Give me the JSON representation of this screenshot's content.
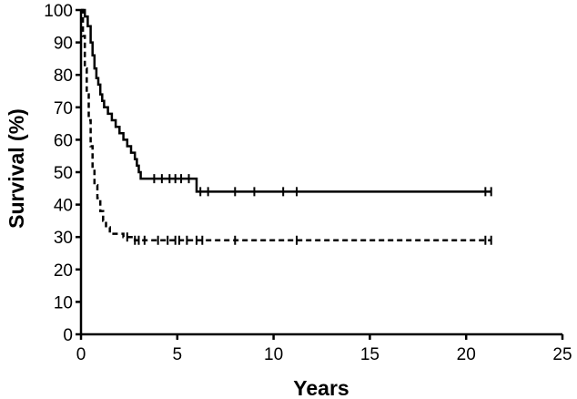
{
  "chart_data": {
    "type": "line",
    "title": "",
    "xlabel": "Years",
    "ylabel": "Survival (%)",
    "xlim": [
      0,
      25
    ],
    "ylim": [
      0,
      100
    ],
    "xticks": [
      0,
      5,
      10,
      15,
      20,
      25
    ],
    "yticks": [
      0,
      10,
      20,
      30,
      40,
      50,
      60,
      70,
      80,
      90,
      100
    ],
    "grid": false,
    "legend": "none",
    "series": [
      {
        "style": "solid",
        "color": "#000000",
        "points": [
          [
            0,
            100
          ],
          [
            0.2,
            98
          ],
          [
            0.35,
            95
          ],
          [
            0.5,
            90
          ],
          [
            0.6,
            86
          ],
          [
            0.7,
            82
          ],
          [
            0.8,
            79
          ],
          [
            0.9,
            77
          ],
          [
            1.0,
            74
          ],
          [
            1.1,
            72
          ],
          [
            1.2,
            70
          ],
          [
            1.4,
            68
          ],
          [
            1.6,
            66
          ],
          [
            1.8,
            64
          ],
          [
            2.0,
            62
          ],
          [
            2.2,
            60
          ],
          [
            2.4,
            58
          ],
          [
            2.6,
            56
          ],
          [
            2.8,
            54
          ],
          [
            2.9,
            52
          ],
          [
            3.0,
            50
          ],
          [
            3.1,
            48
          ],
          [
            5.9,
            48
          ],
          [
            6.0,
            44
          ],
          [
            21.3,
            44
          ]
        ],
        "censored_x": [
          3.8,
          4.2,
          4.6,
          4.9,
          5.2,
          5.6,
          6.2,
          6.6,
          8.0,
          9.0,
          10.5,
          11.2,
          21.0,
          21.3
        ]
      },
      {
        "style": "dashed",
        "color": "#000000",
        "points": [
          [
            0,
            100
          ],
          [
            0.1,
            92
          ],
          [
            0.2,
            82
          ],
          [
            0.3,
            74
          ],
          [
            0.4,
            66
          ],
          [
            0.5,
            58
          ],
          [
            0.6,
            51
          ],
          [
            0.7,
            46
          ],
          [
            0.85,
            42
          ],
          [
            1.0,
            38
          ],
          [
            1.15,
            35
          ],
          [
            1.3,
            33
          ],
          [
            1.5,
            31
          ],
          [
            2.1,
            31
          ],
          [
            2.2,
            30
          ],
          [
            2.6,
            30
          ],
          [
            2.8,
            29
          ],
          [
            21.3,
            29
          ]
        ],
        "censored_x": [
          2.4,
          2.8,
          3.0,
          3.3,
          4.0,
          4.5,
          4.9,
          5.1,
          5.5,
          6.0,
          6.3,
          8.0,
          11.2,
          21.0,
          21.3
        ]
      }
    ]
  }
}
